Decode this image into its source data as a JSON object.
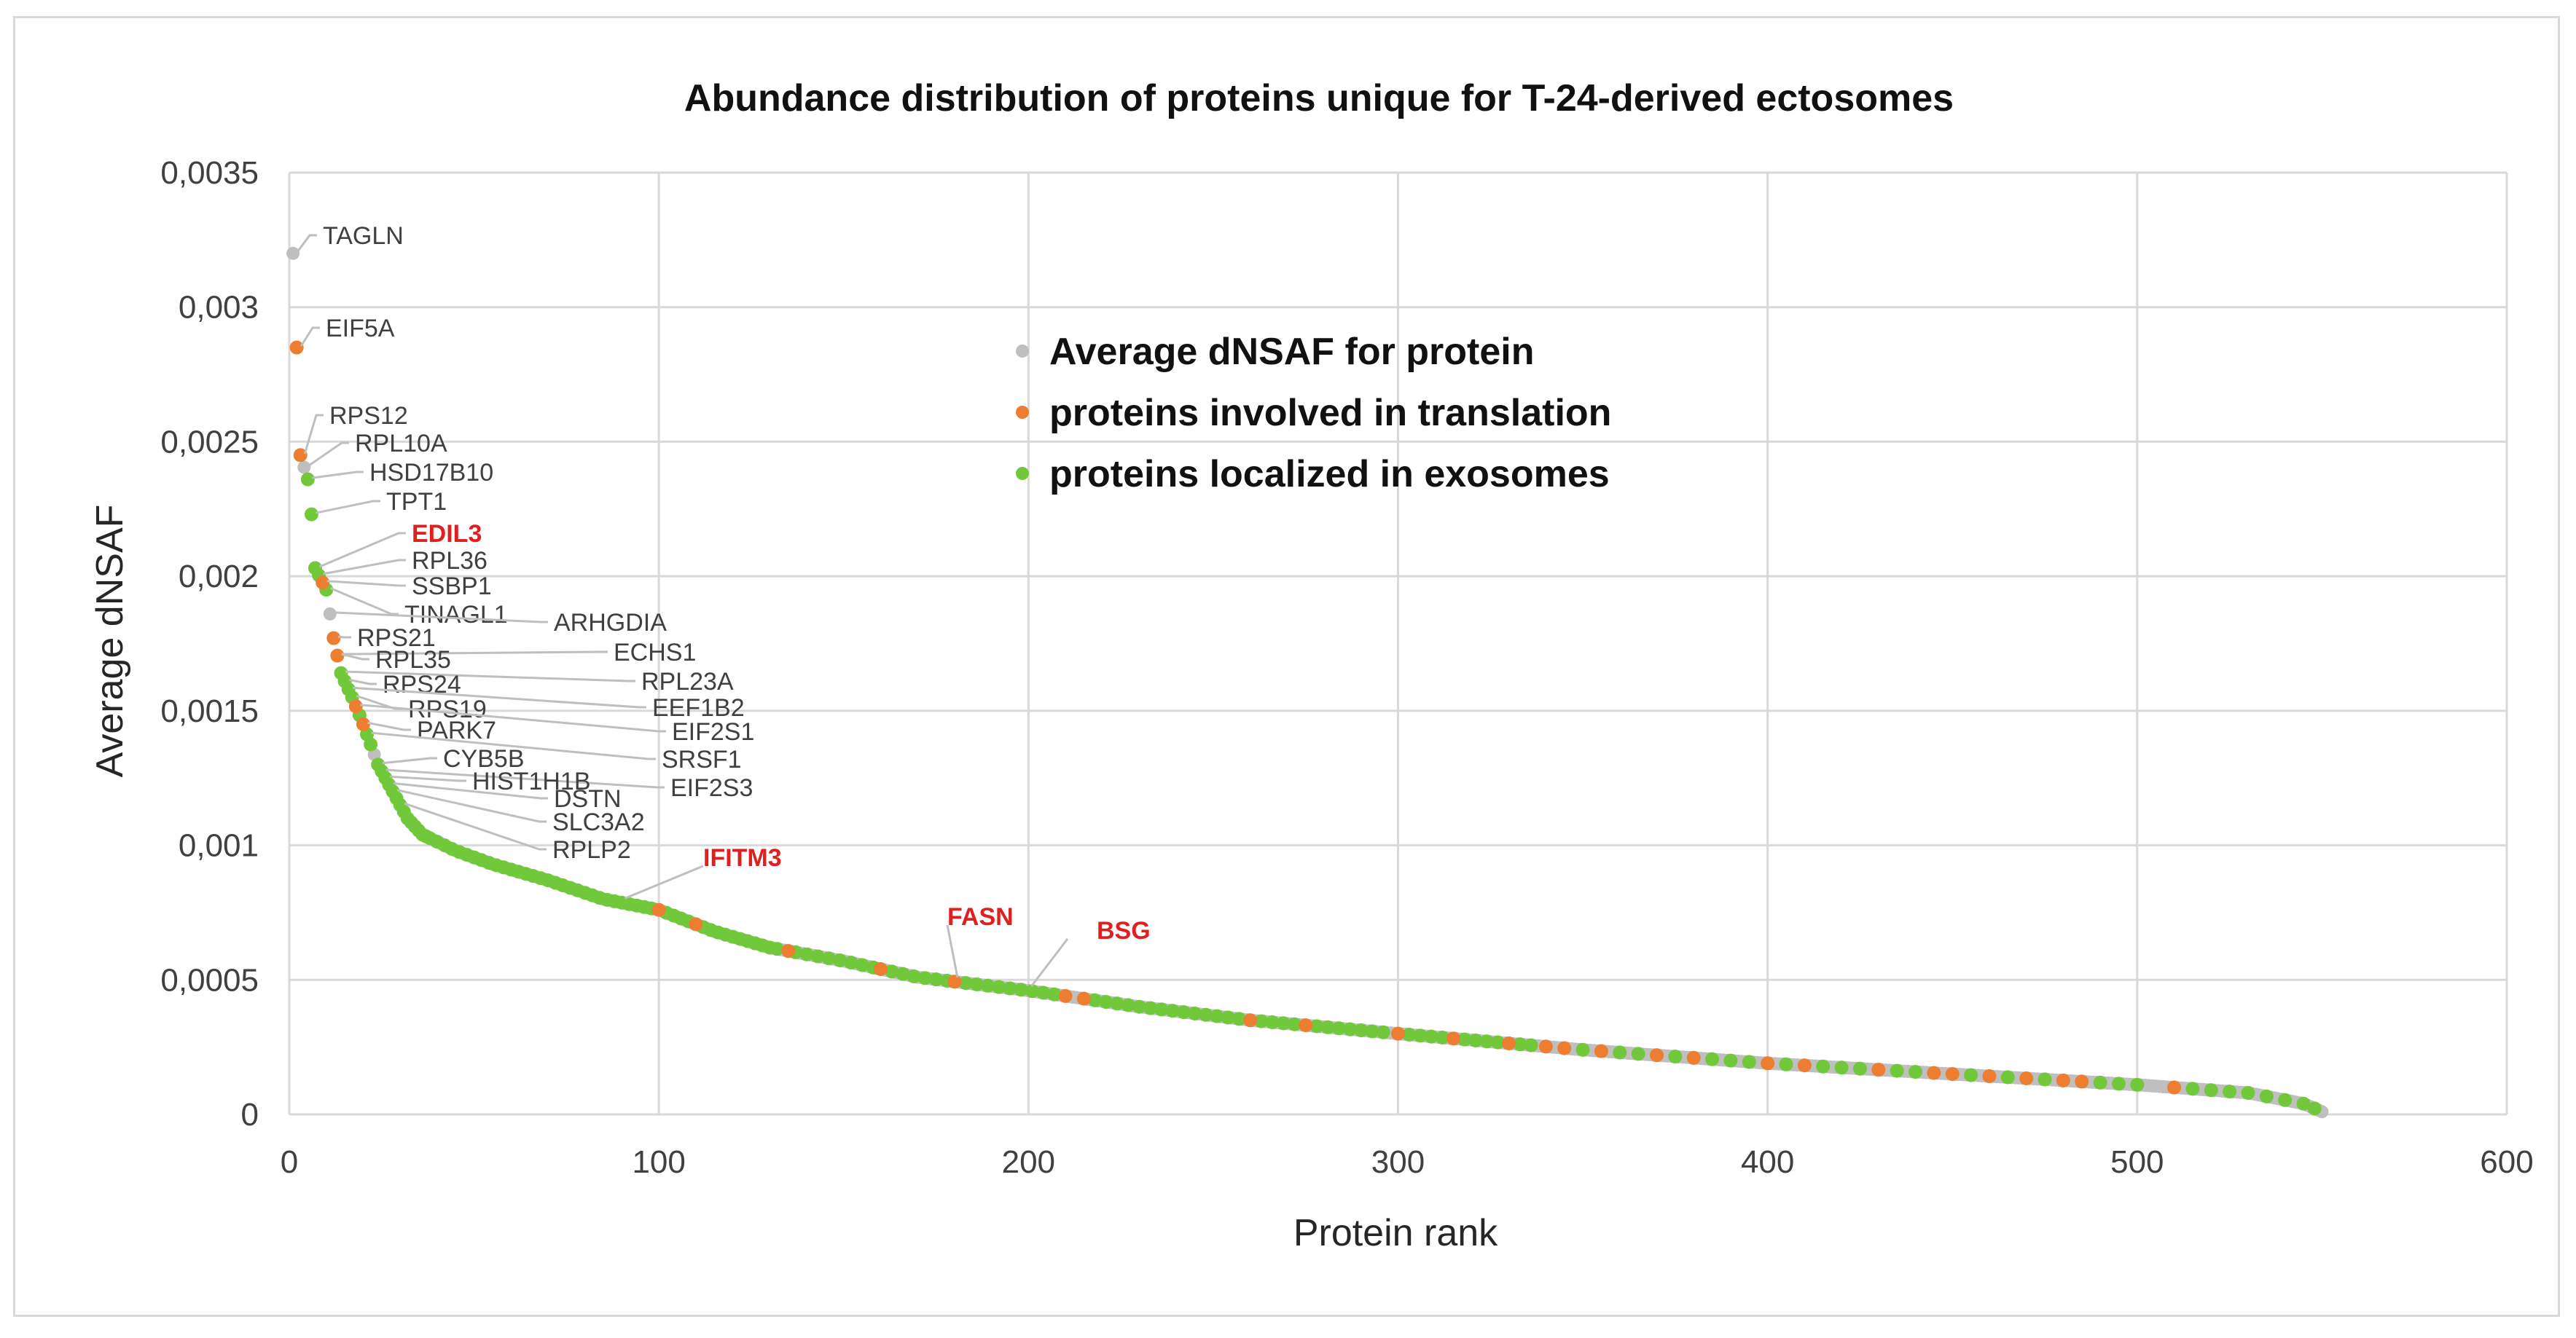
{
  "colors": {
    "gray": "#bfbfbf",
    "orange": "#ed7d31",
    "green": "#70c83a",
    "red_label": "#e02020"
  },
  "chart_data": {
    "type": "scatter",
    "title": "Abundance distribution of proteins unique for T-24-derived ectosomes",
    "xlabel": "Protein rank",
    "ylabel": "Average dNSAF",
    "xlim": [
      0,
      600
    ],
    "ylim": [
      0,
      0.0035
    ],
    "xticks": [
      0,
      100,
      200,
      300,
      400,
      500,
      600
    ],
    "xtick_labels": [
      "0",
      "100",
      "200",
      "300",
      "400",
      "500",
      "600"
    ],
    "yticks": [
      0,
      0.0005,
      0.001,
      0.0015,
      0.002,
      0.0025,
      0.003,
      0.0035
    ],
    "ytick_labels": [
      "0",
      "0,0005",
      "0,001",
      "0,0015",
      "0,002",
      "0,0025",
      "0,003",
      "0,0035"
    ],
    "grid": true,
    "legend_position": "upper-center",
    "legend": [
      {
        "name": "Average dNSAF for protein",
        "color": "#bfbfbf"
      },
      {
        "name": "proteins involved in translation",
        "color": "#ed7d31"
      },
      {
        "name": "proteins localized in exosomes",
        "color": "#70c83a"
      }
    ],
    "curve_anchors": [
      [
        1,
        0.0032
      ],
      [
        2,
        0.00285
      ],
      [
        3,
        0.00245
      ],
      [
        5,
        0.00236
      ],
      [
        6,
        0.00223
      ],
      [
        7,
        0.00203
      ],
      [
        10,
        0.00195
      ],
      [
        12,
        0.00177
      ],
      [
        14,
        0.00164
      ],
      [
        17,
        0.00155
      ],
      [
        20,
        0.00145
      ],
      [
        24,
        0.0013
      ],
      [
        28,
        0.0012
      ],
      [
        32,
        0.0011
      ],
      [
        36,
        0.00104
      ],
      [
        45,
        0.00098
      ],
      [
        55,
        0.00093
      ],
      [
        70,
        0.00087
      ],
      [
        85,
        0.0008
      ],
      [
        100,
        0.00076
      ],
      [
        115,
        0.00068
      ],
      [
        130,
        0.00062
      ],
      [
        150,
        0.00057
      ],
      [
        170,
        0.00051
      ],
      [
        200,
        0.00046
      ],
      [
        230,
        0.0004
      ],
      [
        260,
        0.00035
      ],
      [
        300,
        0.0003
      ],
      [
        350,
        0.00024
      ],
      [
        400,
        0.00019
      ],
      [
        450,
        0.00015
      ],
      [
        500,
        0.00011
      ],
      [
        530,
        8e-05
      ],
      [
        545,
        4e-05
      ],
      [
        550,
        1e-05
      ]
    ],
    "series": [
      {
        "name": "Average dNSAF for protein",
        "color": "#bfbfbf",
        "x_range": [
          1,
          550
        ]
      },
      {
        "name": "proteins involved in translation",
        "color": "#ed7d31",
        "x": [
          2,
          3,
          9,
          12,
          13,
          18,
          20,
          100,
          110,
          135,
          160,
          180,
          210,
          215,
          260,
          275,
          300,
          315,
          330,
          340,
          345,
          355,
          370,
          380,
          400,
          410,
          430,
          445,
          450,
          460,
          470,
          480,
          485,
          510
        ]
      },
      {
        "name": "proteins localized in exosomes",
        "color": "#70c83a",
        "x": [
          5,
          6,
          7,
          8,
          10,
          14,
          15,
          16,
          17,
          19,
          21,
          22,
          24,
          25,
          26,
          27,
          28,
          29,
          30,
          31,
          32,
          33,
          34,
          35,
          36,
          37,
          38,
          40,
          42,
          44,
          46,
          48,
          50,
          52,
          54,
          56,
          58,
          60,
          62,
          64,
          66,
          68,
          70,
          72,
          74,
          76,
          78,
          80,
          82,
          84,
          86,
          88,
          90,
          92,
          94,
          96,
          98,
          102,
          104,
          106,
          108,
          112,
          114,
          116,
          118,
          120,
          122,
          124,
          126,
          128,
          130,
          132,
          137,
          140,
          143,
          146,
          149,
          152,
          155,
          158,
          163,
          166,
          169,
          172,
          175,
          178,
          183,
          186,
          189,
          192,
          195,
          198,
          201,
          204,
          207,
          218,
          221,
          224,
          227,
          230,
          233,
          236,
          239,
          242,
          245,
          248,
          251,
          254,
          257,
          263,
          266,
          269,
          272,
          278,
          281,
          284,
          287,
          290,
          293,
          296,
          303,
          306,
          309,
          312,
          318,
          321,
          324,
          327,
          333,
          336,
          350,
          360,
          365,
          375,
          385,
          390,
          395,
          405,
          415,
          420,
          425,
          435,
          440,
          455,
          465,
          475,
          490,
          495,
          500,
          515,
          520,
          525,
          530,
          535,
          540,
          545,
          548
        ]
      }
    ],
    "annotations": [
      {
        "label": "TAGLN",
        "x": 1,
        "y": 0.0032,
        "highlight": false
      },
      {
        "label": "EIF5A",
        "x": 2,
        "y": 0.00285,
        "highlight": false
      },
      {
        "label": "RPS12",
        "x": 3,
        "y": 0.00245,
        "highlight": false
      },
      {
        "label": "RPL10A",
        "x": 4,
        "y": 0.00242,
        "highlight": false
      },
      {
        "label": "HSD17B10",
        "x": 5,
        "y": 0.00236,
        "highlight": false
      },
      {
        "label": "TPT1",
        "x": 6,
        "y": 0.00223,
        "highlight": false
      },
      {
        "label": "EDIL3",
        "x": 7,
        "y": 0.00203,
        "highlight": true
      },
      {
        "label": "RPL36",
        "x": 8,
        "y": 0.002,
        "highlight": false
      },
      {
        "label": "SSBP1",
        "x": 9,
        "y": 0.00199,
        "highlight": false
      },
      {
        "label": "TINAGL1",
        "x": 10,
        "y": 0.00195,
        "highlight": false
      },
      {
        "label": "ARHGDIA",
        "x": 11,
        "y": 0.00185,
        "highlight": false
      },
      {
        "label": "RPS21",
        "x": 12,
        "y": 0.00177,
        "highlight": false
      },
      {
        "label": "ECHS1",
        "x": 13,
        "y": 0.00165,
        "highlight": false
      },
      {
        "label": "RPL35",
        "x": 13,
        "y": 0.00164,
        "highlight": false
      },
      {
        "label": "RPL23A",
        "x": 14,
        "y": 0.00162,
        "highlight": false
      },
      {
        "label": "RPS24",
        "x": 15,
        "y": 0.0016,
        "highlight": false
      },
      {
        "label": "EEF1B2",
        "x": 16,
        "y": 0.00155,
        "highlight": false
      },
      {
        "label": "RPS19",
        "x": 17,
        "y": 0.00153,
        "highlight": false
      },
      {
        "label": "EIF2S1",
        "x": 18,
        "y": 0.00148,
        "highlight": false
      },
      {
        "label": "PARK7",
        "x": 20,
        "y": 0.00145,
        "highlight": false
      },
      {
        "label": "SRSF1",
        "x": 21,
        "y": 0.0014,
        "highlight": false
      },
      {
        "label": "CYB5B",
        "x": 24,
        "y": 0.0013,
        "highlight": false
      },
      {
        "label": "EIF2S3",
        "x": 25,
        "y": 0.00127,
        "highlight": false
      },
      {
        "label": "HIST1H1B",
        "x": 26,
        "y": 0.00125,
        "highlight": false
      },
      {
        "label": "DSTN",
        "x": 27,
        "y": 0.00122,
        "highlight": false
      },
      {
        "label": "SLC3A2",
        "x": 28,
        "y": 0.0012,
        "highlight": false
      },
      {
        "label": "RPLP2",
        "x": 30,
        "y": 0.00115,
        "highlight": false
      },
      {
        "label": "IFITM3",
        "x": 90,
        "y": 0.00079,
        "highlight": true
      },
      {
        "label": "FASN",
        "x": 180,
        "y": 0.0005,
        "highlight": true
      },
      {
        "label": "BSG",
        "x": 200,
        "y": 0.00046,
        "highlight": true
      }
    ]
  }
}
